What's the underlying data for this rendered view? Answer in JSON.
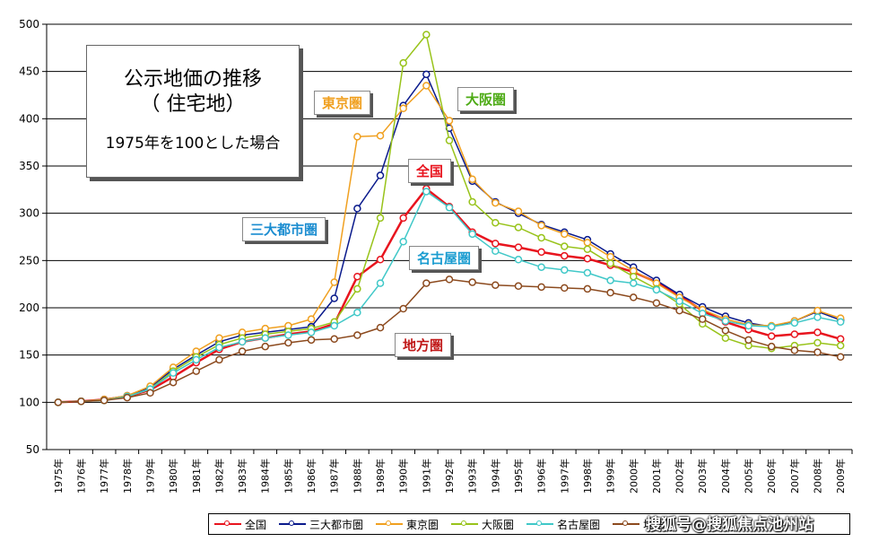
{
  "chart_data": {
    "type": "line",
    "title": "公示地価の推移",
    "subtitle": "（ 住宅地）",
    "note": "1975年を100とした場合",
    "ylim": [
      50,
      500
    ],
    "yticks": [
      "50",
      "100",
      "150",
      "200",
      "250",
      "300",
      "350",
      "400",
      "450",
      "500"
    ],
    "grid": true,
    "legend_position": "bottom",
    "categories": [
      "1975年",
      "1976年",
      "1977年",
      "1978年",
      "1979年",
      "1980年",
      "1981年",
      "1982年",
      "1983年",
      "1984年",
      "1985年",
      "1986年",
      "1987年",
      "1988年",
      "1989年",
      "1990年",
      "1991年",
      "1992年",
      "1993年",
      "1994年",
      "1995年",
      "1996年",
      "1997年",
      "1998年",
      "1999年",
      "2000年",
      "2001年",
      "2002年",
      "2003年",
      "2004年",
      "2005年",
      "2006年",
      "2007年",
      "2008年",
      "2009年"
    ],
    "series": [
      {
        "name": "全国",
        "label": "全国",
        "color": "#e8141e",
        "width": 2.5,
        "values": [
          100,
          101,
          103,
          106,
          113,
          127,
          142,
          156,
          164,
          168,
          172,
          175,
          183,
          233,
          251,
          295,
          326,
          307,
          280,
          268,
          264,
          259,
          255,
          252,
          245,
          238,
          227,
          213,
          197,
          185,
          177,
          170,
          172,
          174,
          167
        ]
      },
      {
        "name": "三大都市圏",
        "label": "三大都市圏",
        "color": "#0a1a8c",
        "width": 1.5,
        "values": [
          100,
          101,
          103,
          107,
          116,
          135,
          150,
          164,
          171,
          174,
          177,
          180,
          210,
          305,
          340,
          414,
          447,
          390,
          334,
          312,
          300,
          288,
          280,
          272,
          257,
          243,
          229,
          214,
          201,
          191,
          184,
          180,
          186,
          196,
          187
        ]
      },
      {
        "name": "東京圏",
        "label": "東京圏",
        "color": "#f0a020",
        "width": 1.5,
        "values": [
          100,
          101,
          103,
          107,
          117,
          137,
          154,
          168,
          174,
          178,
          181,
          188,
          227,
          381,
          382,
          411,
          435,
          398,
          336,
          311,
          302,
          287,
          278,
          269,
          254,
          239,
          226,
          211,
          198,
          188,
          182,
          181,
          186,
          197,
          189
        ]
      },
      {
        "name": "大阪圏",
        "label": "大阪圏",
        "color": "#98c31a",
        "width": 1.5,
        "values": [
          100,
          101,
          102,
          106,
          114,
          133,
          148,
          161,
          168,
          172,
          175,
          178,
          185,
          220,
          295,
          459,
          489,
          377,
          312,
          290,
          285,
          274,
          265,
          262,
          247,
          233,
          220,
          204,
          183,
          168,
          160,
          157,
          160,
          163,
          160
        ]
      },
      {
        "name": "名古屋圏",
        "label": "名古屋圏",
        "color": "#40c8c8",
        "width": 1.5,
        "values": [
          100,
          101,
          102,
          106,
          114,
          131,
          145,
          158,
          164,
          168,
          171,
          174,
          181,
          195,
          226,
          270,
          323,
          306,
          278,
          260,
          251,
          243,
          240,
          237,
          229,
          226,
          219,
          207,
          194,
          186,
          181,
          180,
          184,
          190,
          185
        ]
      },
      {
        "name": "地方圏",
        "label": "地方圏",
        "color": "#8c4a1e",
        "width": 1.5,
        "values": [
          100,
          101,
          102,
          105,
          110,
          121,
          133,
          145,
          154,
          159,
          163,
          166,
          167,
          171,
          179,
          199,
          226,
          230,
          227,
          224,
          223,
          222,
          221,
          220,
          216,
          211,
          205,
          197,
          188,
          176,
          166,
          159,
          155,
          153,
          148
        ]
      }
    ]
  },
  "legend": {
    "items": [
      "全国",
      "三大都市圏",
      "東京圏",
      "大阪圏",
      "名古屋圏",
      "地方圏"
    ]
  },
  "watermark": "搜狐号@搜狐焦点池州站"
}
